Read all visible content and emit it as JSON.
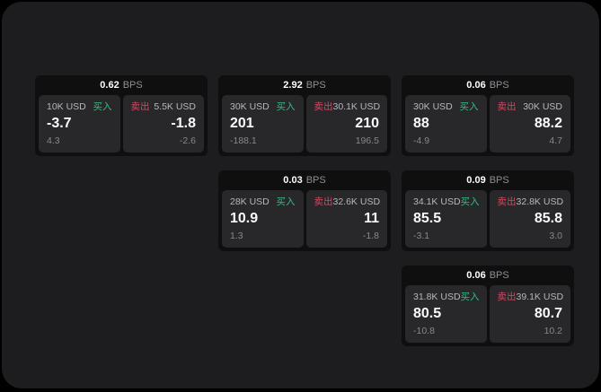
{
  "colors": {
    "window_bg": "#1d1d1f",
    "card_bg": "#0f0f10",
    "panel_bg": "#28282b",
    "buy_green": "#34bd80",
    "sell_red": "#d04a60"
  },
  "labels": {
    "buy": "买入",
    "sell": "卖出",
    "unit": "BPS"
  },
  "cards": [
    {
      "spread": "0.62",
      "unit": "BPS",
      "buy": {
        "amount": "10K USD",
        "side_label": "买入",
        "price": "-3.7",
        "change": "4.3"
      },
      "sell": {
        "amount": "5.5K USD",
        "side_label": "卖出",
        "price": "-1.8",
        "change": "-2.6"
      }
    },
    {
      "spread": "2.92",
      "unit": "BPS",
      "buy": {
        "amount": "30K USD",
        "side_label": "买入",
        "price": "201",
        "change": "-188.1"
      },
      "sell": {
        "amount": "30.1K USD",
        "side_label": "卖出",
        "price": "210",
        "change": "196.5"
      }
    },
    {
      "spread": "0.06",
      "unit": "BPS",
      "buy": {
        "amount": "30K USD",
        "side_label": "买入",
        "price": "88",
        "change": "-4.9"
      },
      "sell": {
        "amount": "30K USD",
        "side_label": "卖出",
        "price": "88.2",
        "change": "4.7"
      }
    },
    {
      "spread": "0.03",
      "unit": "BPS",
      "buy": {
        "amount": "28K USD",
        "side_label": "买入",
        "price": "10.9",
        "change": "1.3"
      },
      "sell": {
        "amount": "32.6K USD",
        "side_label": "卖出",
        "price": "11",
        "change": "-1.8"
      }
    },
    {
      "spread": "0.09",
      "unit": "BPS",
      "buy": {
        "amount": "34.1K USD",
        "side_label": "买入",
        "price": "85.5",
        "change": "-3.1"
      },
      "sell": {
        "amount": "32.8K USD",
        "side_label": "卖出",
        "price": "85.8",
        "change": "3.0"
      }
    },
    {
      "spread": "0.06",
      "unit": "BPS",
      "buy": {
        "amount": "31.8K USD",
        "side_label": "买入",
        "price": "80.5",
        "change": "-10.8"
      },
      "sell": {
        "amount": "39.1K USD",
        "side_label": "卖出",
        "price": "80.7",
        "change": "10.2"
      }
    }
  ]
}
